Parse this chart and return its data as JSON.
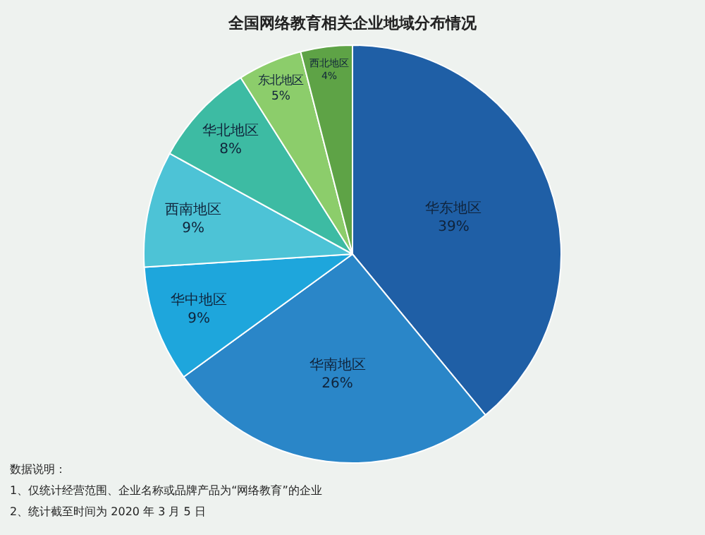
{
  "chart_data": {
    "type": "pie",
    "title": "全国网络教育相关企业地域分布情况",
    "categories": [
      "华东地区",
      "华南地区",
      "华中地区",
      "西南地区",
      "华北地区",
      "东北地区",
      "西北地区"
    ],
    "values": [
      39,
      26,
      9,
      9,
      8,
      5,
      4
    ],
    "value_labels": [
      "39%",
      "26%",
      "9%",
      "9%",
      "8%",
      "5%",
      "4%"
    ],
    "colors": [
      "#1f5fa6",
      "#2a86c8",
      "#1ea6dc",
      "#4dc3d6",
      "#3dbba3",
      "#8ccd6b",
      "#5ea346"
    ],
    "legend": false,
    "annotations": [
      "数据说明：",
      "1、仅统计经营范围、企业名称或品牌产品为“网络教育”的企业",
      "2、统计截至时间为 2020 年 3 月 5 日"
    ]
  }
}
